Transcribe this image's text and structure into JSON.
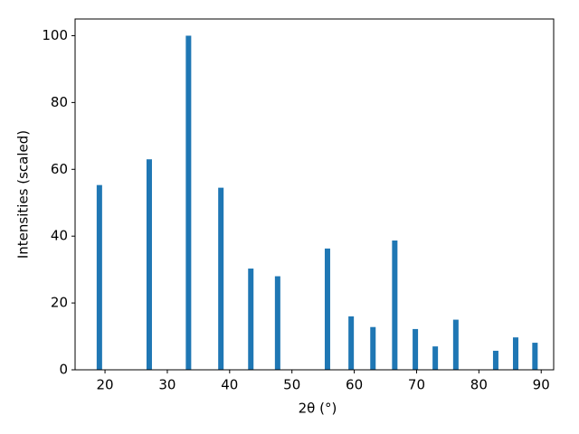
{
  "chart_data": {
    "type": "bar",
    "x_label": "2θ (°)",
    "y_label": "Intensities (scaled)",
    "x": [
      19.1,
      27.1,
      33.4,
      38.6,
      43.4,
      47.7,
      55.7,
      59.5,
      63.0,
      66.5,
      69.8,
      73.0,
      76.3,
      82.7,
      85.9,
      89.0
    ],
    "values": [
      55.3,
      63,
      100,
      54.5,
      30.3,
      28,
      36.3,
      16,
      12.8,
      38.7,
      12.2,
      7,
      15,
      5.7,
      9.7,
      8.1
    ],
    "color": "#1f77b4",
    "xlim": [
      15.2,
      92.0
    ],
    "ylim": [
      0,
      105
    ],
    "xticks": [
      20,
      30,
      40,
      50,
      60,
      70,
      80,
      90
    ],
    "yticks": [
      0,
      20,
      40,
      60,
      80,
      100
    ],
    "grid": false
  }
}
